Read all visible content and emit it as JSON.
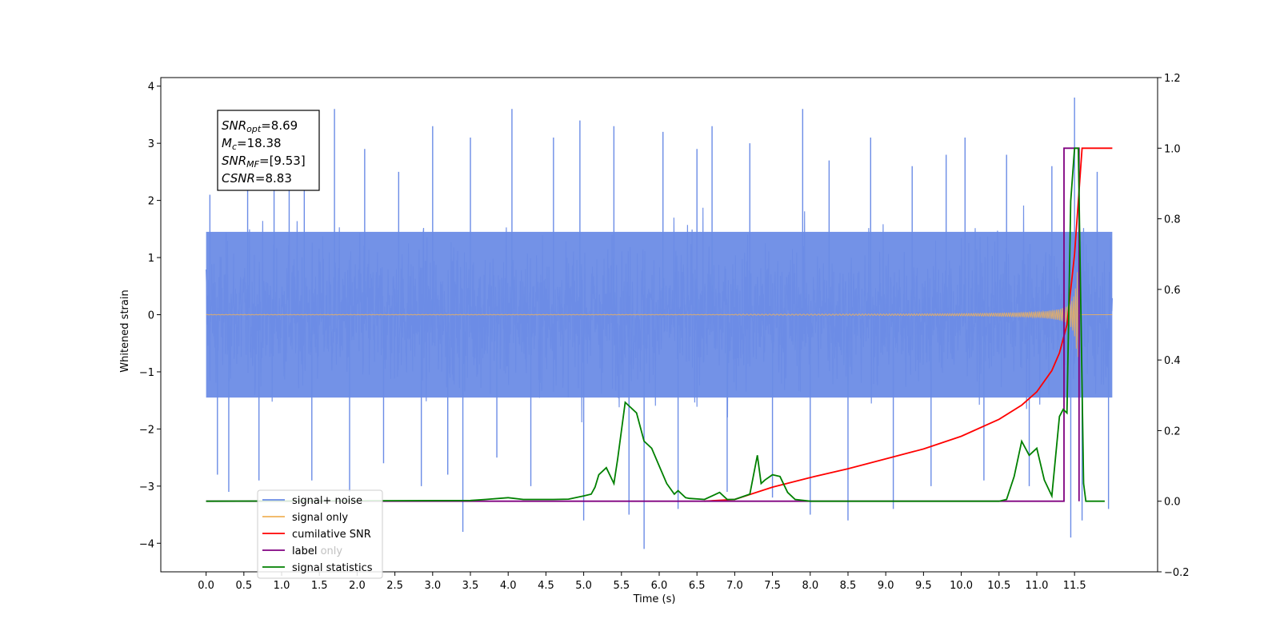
{
  "chart_data": {
    "type": "line",
    "xlabel": "Time (s)",
    "ylabel": "Whitened strain",
    "xlim": [
      -0.6,
      12.6
    ],
    "ylim": [
      -4.5,
      4.15
    ],
    "y2lim": [
      -0.2,
      1.2
    ],
    "x_ticks": [
      "0.0",
      "0.5",
      "1.0",
      "1.5",
      "2.0",
      "2.5",
      "3.0",
      "3.5",
      "4.0",
      "4.5",
      "5.0",
      "5.5",
      "6.0",
      "6.5",
      "7.0",
      "7.5",
      "8.0",
      "8.5",
      "9.0",
      "9.5",
      "10.0",
      "10.5",
      "11.0",
      "11.5"
    ],
    "y_ticks": [
      "−4",
      "−3",
      "−2",
      "−1",
      "0",
      "1",
      "2",
      "3",
      "4"
    ],
    "y2_ticks": [
      "−0.2",
      "0.0",
      "0.2",
      "0.4",
      "0.6",
      "0.8",
      "1.0",
      "1.2"
    ],
    "grid": false,
    "legend_position": "lower-left",
    "info_box": {
      "snr_opt": {
        "base": "SNR",
        "sub": "opt",
        "value": "=8.69"
      },
      "mc": {
        "base": "M",
        "sub": "c",
        "value": "=18.38"
      },
      "snr_mf": {
        "base": "SNR",
        "sub": "MF",
        "value": "=[9.53]"
      },
      "csnr": {
        "base": "CSNR",
        "value": "=8.83"
      }
    },
    "series": [
      {
        "name": "signal+ noise",
        "axis": "left",
        "color": "#6b8ce6",
        "description": "noise envelope, x 0 to 12, mostly within ±2.2, spikes up to ±3.8",
        "spikes": [
          [
            0.05,
            2.1
          ],
          [
            0.15,
            -2.8
          ],
          [
            0.3,
            -3.1
          ],
          [
            0.55,
            2.3
          ],
          [
            0.7,
            -2.9
          ],
          [
            0.9,
            2.7
          ],
          [
            1.1,
            3.0
          ],
          [
            1.3,
            3.2
          ],
          [
            1.4,
            -2.9
          ],
          [
            1.7,
            3.6
          ],
          [
            1.9,
            -3.1
          ],
          [
            2.1,
            2.9
          ],
          [
            2.35,
            -2.6
          ],
          [
            2.55,
            2.5
          ],
          [
            2.85,
            -3.0
          ],
          [
            3.0,
            3.3
          ],
          [
            3.2,
            -2.8
          ],
          [
            3.4,
            -3.8
          ],
          [
            3.5,
            3.1
          ],
          [
            3.85,
            -2.5
          ],
          [
            4.05,
            3.6
          ],
          [
            4.3,
            -3.0
          ],
          [
            4.6,
            3.1
          ],
          [
            4.95,
            3.4
          ],
          [
            5.0,
            -3.6
          ],
          [
            5.4,
            3.3
          ],
          [
            5.6,
            -3.5
          ],
          [
            5.8,
            -4.1
          ],
          [
            6.05,
            3.2
          ],
          [
            6.25,
            -3.4
          ],
          [
            6.5,
            2.9
          ],
          [
            6.7,
            3.3
          ],
          [
            6.9,
            -3.1
          ],
          [
            7.2,
            3.0
          ],
          [
            7.5,
            -3.2
          ],
          [
            7.9,
            3.6
          ],
          [
            8.0,
            -3.5
          ],
          [
            8.25,
            2.7
          ],
          [
            8.5,
            -3.6
          ],
          [
            8.8,
            3.1
          ],
          [
            9.1,
            -3.4
          ],
          [
            9.35,
            2.6
          ],
          [
            9.6,
            -3.0
          ],
          [
            9.8,
            2.8
          ],
          [
            10.05,
            3.1
          ],
          [
            10.3,
            -2.9
          ],
          [
            10.6,
            2.8
          ],
          [
            10.9,
            -3.0
          ],
          [
            11.2,
            2.6
          ],
          [
            11.5,
            3.8
          ],
          [
            11.45,
            -3.9
          ],
          [
            11.6,
            -3.6
          ],
          [
            11.8,
            2.5
          ],
          [
            11.95,
            -3.4
          ]
        ]
      },
      {
        "name": "signal only",
        "axis": "left",
        "color": "#f0b25a",
        "description": "chirp growing from ~0 at t=8.5 to ±0.7 at t≈11.55"
      },
      {
        "name": "cumilative SNR",
        "axis": "right",
        "color": "#ff0000",
        "x": [
          6.6,
          7.0,
          7.5,
          8.0,
          8.5,
          9.0,
          9.5,
          10.0,
          10.5,
          10.8,
          11.0,
          11.2,
          11.3,
          11.4,
          11.5,
          11.55,
          11.6,
          12.0
        ],
        "y": [
          0.0,
          0.005,
          0.04,
          0.067,
          0.092,
          0.12,
          0.148,
          0.184,
          0.232,
          0.272,
          0.31,
          0.37,
          0.42,
          0.5,
          0.7,
          0.85,
          1.0,
          1.0
        ]
      },
      {
        "name": "label",
        "axis": "right",
        "color": "#800080",
        "x": [
          0,
          11.36,
          11.36,
          11.56,
          11.56
        ],
        "y": [
          0,
          0,
          1.0,
          1.0,
          0
        ]
      },
      {
        "name": "label only",
        "axis": "right",
        "color": "#800080",
        "x": [
          0,
          11.36
        ],
        "y": [
          0,
          0
        ]
      },
      {
        "name": "signal statistics",
        "axis": "right",
        "color": "#008000",
        "x": [
          0,
          3.5,
          3.7,
          4.0,
          4.2,
          4.6,
          4.8,
          5.0,
          5.1,
          5.15,
          5.2,
          5.3,
          5.4,
          5.45,
          5.5,
          5.55,
          5.6,
          5.7,
          5.8,
          5.9,
          6.0,
          6.1,
          6.2,
          6.25,
          6.35,
          6.4,
          6.6,
          6.8,
          6.9,
          7.0,
          7.2,
          7.3,
          7.35,
          7.4,
          7.5,
          7.6,
          7.7,
          7.8,
          8.0,
          10.5,
          10.6,
          10.7,
          10.8,
          10.9,
          11.0,
          11.1,
          11.2,
          11.3,
          11.35,
          11.4,
          11.45,
          11.5,
          11.55,
          11.62,
          11.65,
          11.7,
          11.8,
          11.9
        ],
        "y": [
          0,
          0.002,
          0.005,
          0.01,
          0.005,
          0.005,
          0.006,
          0.015,
          0.02,
          0.04,
          0.075,
          0.095,
          0.05,
          0.12,
          0.2,
          0.28,
          0.27,
          0.25,
          0.17,
          0.15,
          0.1,
          0.05,
          0.02,
          0.03,
          0.01,
          0.008,
          0.005,
          0.025,
          0.005,
          0.005,
          0.02,
          0.13,
          0.05,
          0.06,
          0.075,
          0.07,
          0.025,
          0.005,
          0,
          0,
          0.005,
          0.07,
          0.17,
          0.13,
          0.15,
          0.06,
          0.015,
          0.24,
          0.26,
          0.25,
          0.85,
          1.0,
          1.0,
          0.05,
          0.0,
          0,
          0,
          0
        ]
      }
    ]
  }
}
